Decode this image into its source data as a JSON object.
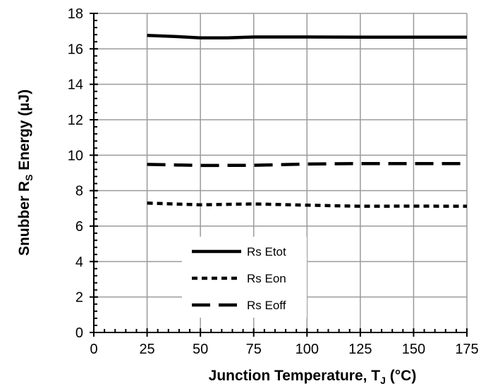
{
  "chart_data": {
    "type": "line",
    "title": "",
    "xlabel": "Junction Temperature, T",
    "xlabel_sub": "J",
    "xlabel_suffix": " (°C)",
    "ylabel": "Snubber R",
    "ylabel_sub": "S",
    "ylabel_suffix": " Energy (µJ)",
    "xlim": [
      0,
      175
    ],
    "ylim": [
      0,
      18
    ],
    "x_ticks": [
      "0",
      "25",
      "50",
      "75",
      "100",
      "125",
      "150",
      "175"
    ],
    "y_ticks": [
      "0",
      "2",
      "4",
      "6",
      "8",
      "10",
      "12",
      "14",
      "16",
      "18"
    ],
    "grid": true,
    "legend_position": "bottom-left",
    "series": [
      {
        "name": "Rs Etot",
        "style": "solid",
        "color": "#000000",
        "x": [
          25,
          37.5,
          50,
          62.5,
          75,
          100,
          125,
          150,
          175
        ],
        "y": [
          16.76,
          16.7,
          16.62,
          16.62,
          16.67,
          16.67,
          16.66,
          16.66,
          16.66
        ]
      },
      {
        "name": "Rs Eon",
        "style": "short-dash",
        "color": "#000000",
        "x": [
          25,
          50,
          75,
          100,
          125,
          150,
          175
        ],
        "y": [
          7.3,
          7.2,
          7.25,
          7.18,
          7.12,
          7.13,
          7.12
        ]
      },
      {
        "name": "Rs Eoff",
        "style": "long-dash",
        "color": "#000000",
        "x": [
          25,
          50,
          75,
          100,
          125,
          150,
          175
        ],
        "y": [
          9.48,
          9.42,
          9.43,
          9.5,
          9.53,
          9.53,
          9.53
        ]
      }
    ]
  }
}
